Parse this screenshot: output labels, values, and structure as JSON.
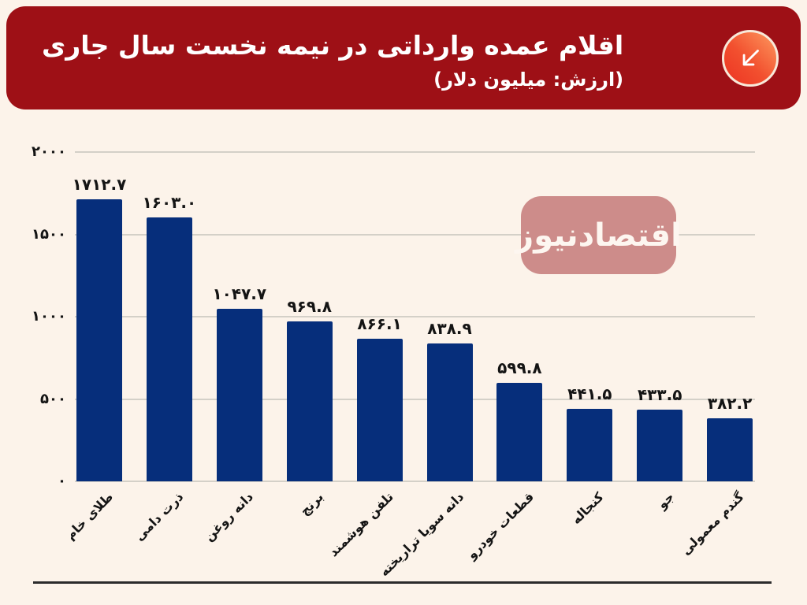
{
  "header": {
    "title": "اقلام عمده وارداتی در نیمه نخست سال جاری",
    "subtitle": "(ارزش: میلیون دلار)",
    "background_color": "#9e1016",
    "icon": "arrow-down-left-icon",
    "icon_gradient": [
      "#fd9a5f",
      "#ec3322"
    ]
  },
  "watermark": {
    "text": "اقتصادنیوز",
    "background_color": "#cd8c8a",
    "text_color": "#ffffff"
  },
  "page": {
    "background_color": "#fcf3ea"
  },
  "chart_data": {
    "type": "bar",
    "title": "اقلام عمده وارداتی در نیمه نخست سال جاری",
    "unit_note": "(ارزش: میلیون دلار)",
    "categories": [
      "طلای خام",
      "ذرت دامی",
      "دانه روغن",
      "برنج",
      "تلفن هوشمند",
      "دانه سویا تراریخته",
      "قطعات خودرو",
      "کنجاله",
      "جو",
      "گندم معمولی"
    ],
    "values": [
      1712.7,
      1603.0,
      1047.7,
      969.8,
      866.1,
      838.9,
      599.8,
      441.5,
      433.5,
      382.2
    ],
    "value_labels": [
      "۱۷۱۲.۷",
      "۱۶۰۳.۰",
      "۱۰۴۷.۷",
      "۹۶۹.۸",
      "۸۶۶.۱",
      "۸۳۸.۹",
      "۵۹۹.۸",
      "۴۴۱.۵",
      "۴۳۳.۵",
      "۳۸۲.۲"
    ],
    "y_ticks": [
      {
        "value": 2000,
        "label": "۲۰۰۰"
      },
      {
        "value": 1500,
        "label": "۱۵۰۰"
      },
      {
        "value": 1000,
        "label": "۱۰۰۰"
      },
      {
        "value": 500,
        "label": "۵۰۰"
      },
      {
        "value": 0,
        "label": "۰"
      }
    ],
    "ylim": [
      0,
      2000
    ],
    "xlabel": "",
    "ylabel": "",
    "grid": true,
    "legend": false,
    "bar_color": "#062e7b",
    "gridline_color": "#d4d0c8",
    "label_color": "#141414"
  }
}
